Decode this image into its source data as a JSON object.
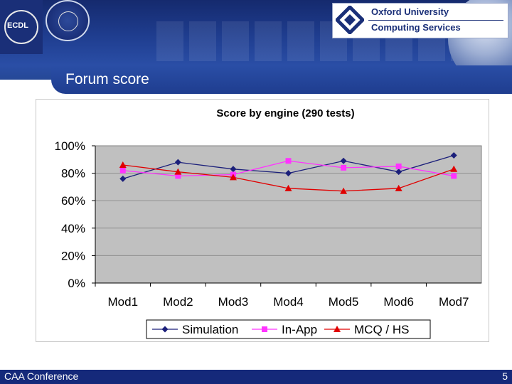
{
  "header": {
    "left_logo": "ECDL",
    "org_line1": "Oxford University",
    "org_line2": "Computing Services"
  },
  "slide": {
    "title": "Forum score",
    "footer": "CAA Conference",
    "page_number": "5"
  },
  "colors": {
    "plot_bg": "#c0c0c0",
    "series_simulation": "#1b1f7a",
    "series_inapp": "#ff33ff",
    "series_mcq": "#e00000",
    "header_blue": "#1f3d8f"
  },
  "chart_data": {
    "type": "line",
    "title": "Score by engine (290 tests)",
    "categories": [
      "Mod1",
      "Mod2",
      "Mod3",
      "Mod4",
      "Mod5",
      "Mod6",
      "Mod7"
    ],
    "y_tick_labels": [
      "0%",
      "20%",
      "40%",
      "60%",
      "80%",
      "100%"
    ],
    "ylim": [
      0,
      100
    ],
    "grid": "horizontal",
    "legend_position": "bottom",
    "series": [
      {
        "name": "Simulation",
        "marker": "diamond",
        "values": [
          76,
          88,
          83,
          80,
          89,
          81,
          93
        ]
      },
      {
        "name": "In-App",
        "marker": "square",
        "values": [
          82,
          78,
          79,
          89,
          84,
          85,
          78
        ]
      },
      {
        "name": "MCQ / HS",
        "marker": "triangle",
        "values": [
          86,
          81,
          77,
          69,
          67,
          69,
          83
        ]
      }
    ]
  }
}
